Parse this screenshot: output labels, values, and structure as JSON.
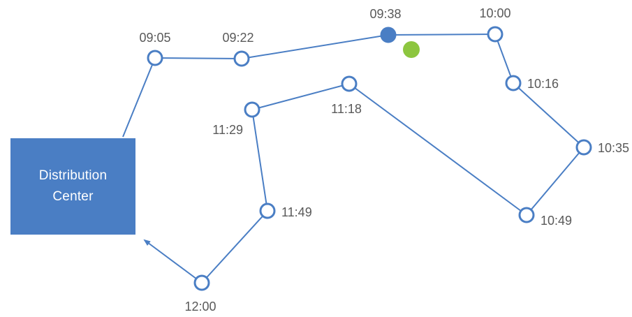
{
  "depot": {
    "line1": "Distribution",
    "line2": "Center"
  },
  "colors": {
    "route": "#4a7ec4",
    "node_fill": "#ffffff",
    "current_position": "#4a7ec4",
    "marker": "#8dc63f",
    "label": "#595959"
  },
  "stops": [
    {
      "id": "stop-0905",
      "time": "09:05",
      "status": "visited"
    },
    {
      "id": "stop-0922",
      "time": "09:22",
      "status": "visited"
    },
    {
      "id": "stop-0938",
      "time": "09:38",
      "status": "current"
    },
    {
      "id": "stop-1000",
      "time": "10:00",
      "status": "upcoming"
    },
    {
      "id": "stop-1016",
      "time": "10:16",
      "status": "upcoming"
    },
    {
      "id": "stop-1035",
      "time": "10:35",
      "status": "upcoming"
    },
    {
      "id": "stop-1049",
      "time": "10:49",
      "status": "upcoming"
    },
    {
      "id": "stop-1118",
      "time": "11:18",
      "status": "upcoming"
    },
    {
      "id": "stop-1129",
      "time": "11:29",
      "status": "upcoming"
    },
    {
      "id": "stop-1149",
      "time": "11:49",
      "status": "upcoming"
    },
    {
      "id": "stop-1200",
      "time": "12:00",
      "status": "upcoming"
    }
  ],
  "marker": {
    "name": "vehicle-marker",
    "color": "#8dc63f"
  }
}
